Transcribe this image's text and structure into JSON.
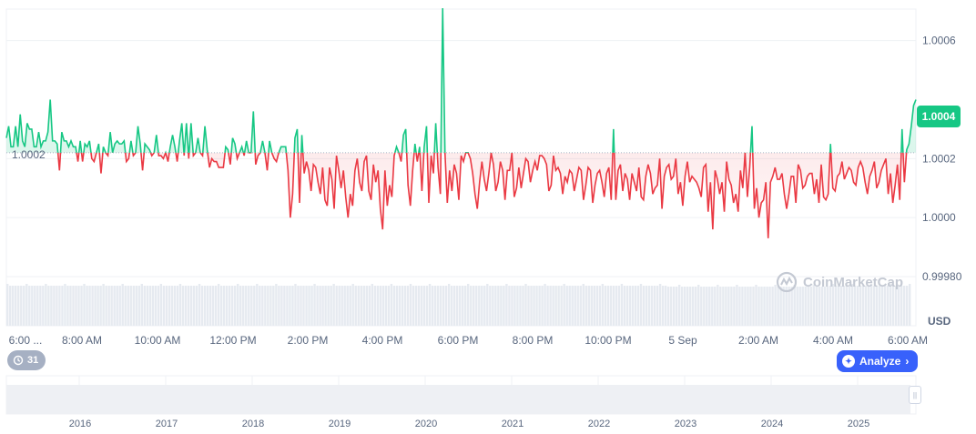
{
  "chart_data": {
    "type": "line",
    "title": "",
    "currency": "USD",
    "reference_price": 1.00022,
    "reference_label": "1.0002",
    "current_price": 1.0004,
    "current_price_label": "1.0004",
    "y_range": [
      0.9998,
      1.00071
    ],
    "y_ticks": [
      "1.0006",
      "1.0002",
      "1.0000",
      "0.99980"
    ],
    "y_tick_values": [
      1.0006,
      1.0002,
      1.0,
      0.9998
    ],
    "x_ticks": [
      "6:00 ...",
      "8:00 AM",
      "10:00 AM",
      "12:00 PM",
      "2:00 PM",
      "4:00 PM",
      "6:00 PM",
      "8:00 PM",
      "10:00 PM",
      "5 Sep",
      "2:00 AM",
      "4:00 AM",
      "6:00 AM"
    ],
    "series_prices": [
      1.00027,
      1.00031,
      1.00024,
      1.00024,
      1.00031,
      1.00024,
      1.00035,
      1.00026,
      1.00024,
      1.00032,
      1.0003,
      1.0003,
      1.00024,
      1.00024,
      1.00029,
      1.00024,
      1.00026,
      1.00026,
      1.00029,
      1.0004,
      1.00026,
      1.00026,
      1.00025,
      1.00016,
      1.00029,
      1.00026,
      1.00026,
      1.00024,
      1.00026,
      1.00024,
      1.00024,
      1.00019,
      1.00026,
      1.00019,
      1.00025,
      1.00024,
      1.00026,
      1.0002,
      1.00019,
      1.00022,
      1.00025,
      1.00015,
      1.00024,
      1.00022,
      1.00021,
      1.00029,
      1.00022,
      1.00025,
      1.00026,
      1.00025,
      1.00025,
      1.00026,
      1.00019,
      1.0002,
      1.00026,
      1.00021,
      1.00022,
      1.00031,
      1.00025,
      1.00016,
      1.00025,
      1.00024,
      1.00023,
      1.00021,
      1.00022,
      1.00028,
      1.00021,
      1.00021,
      1.0002,
      1.00022,
      1.00019,
      1.00024,
      1.00028,
      1.00024,
      1.00019,
      1.00026,
      1.00032,
      1.00021,
      1.00032,
      1.0002,
      1.00032,
      1.00021,
      1.00022,
      1.00027,
      1.00022,
      1.00021,
      1.00031,
      1.00023,
      1.00017,
      1.0002,
      1.00019,
      1.00019,
      1.00017,
      1.00017,
      1.00017,
      1.00024,
      1.00023,
      1.00018,
      1.00027,
      1.00025,
      1.0002,
      1.00022,
      1.00024,
      1.00021,
      1.00026,
      1.00022,
      1.00022,
      1.00036,
      1.00018,
      1.00021,
      1.00022,
      1.00026,
      1.00022,
      1.00016,
      1.00026,
      1.00022,
      1.0002,
      1.00019,
      1.00022,
      1.00024,
      1.00024,
      1.00024,
      1.00016,
      1.0,
      1.00008,
      1.00027,
      1.0003,
      1.00005,
      1.00028,
      1.00015,
      1.00019,
      1.00016,
      1.00009,
      1.00018,
      1.00017,
      1.00012,
      1.00008,
      1.00017,
      1.00006,
      1.00004,
      1.00017,
      1.00013,
      1.00003,
      1.00021,
      1.00016,
      1.0001,
      1.00016,
      1.00007,
      1.0,
      1.00008,
      1.00004,
      1.00016,
      1.0002,
      1.00012,
      1.00009,
      1.00019,
      1.00021,
      1.00009,
      1.00006,
      1.00018,
      1.00012,
      1.00016,
      1.00003,
      0.99996,
      1.00016,
      1.00004,
      1.00011,
      1.00007,
      1.00021,
      1.00024,
      1.00022,
      1.00019,
      1.00028,
      1.0003,
      1.00011,
      1.00004,
      1.00016,
      1.00025,
      1.00019,
      1.00024,
      1.00009,
      1.00024,
      1.00031,
      1.00005,
      1.00021,
      1.00015,
      1.00032,
      1.00017,
      1.00008,
      1.00071,
      1.00022,
      1.00005,
      1.00016,
      1.00009,
      1.00018,
      1.00015,
      1.00006,
      1.00021,
      1.00019,
      1.00022,
      1.00022,
      1.0002,
      1.00015,
      1.00008,
      1.00003,
      1.00012,
      1.00019,
      1.00013,
      1.00009,
      1.00015,
      1.00022,
      1.00018,
      1.00009,
      1.00012,
      1.00019,
      1.00016,
      1.00006,
      1.00016,
      1.00016,
      1.00022,
      1.00007,
      1.0001,
      1.00017,
      1.0001,
      1.00015,
      1.0002,
      1.00019,
      1.00012,
      1.00016,
      1.00019,
      1.00016,
      1.00021,
      1.00021,
      1.0002,
      1.00018,
      1.00009,
      1.00011,
      1.00021,
      1.00016,
      1.00017,
      1.00015,
      1.00008,
      1.00014,
      1.00012,
      1.00016,
      1.00015,
      1.00009,
      1.00013,
      1.00017,
      1.00016,
      1.00006,
      1.00011,
      1.00017,
      1.00016,
      1.00005,
      1.00011,
      1.00015,
      1.00016,
      1.00012,
      1.00007,
      1.00015,
      1.00017,
      1.00006,
      1.0003,
      1.00006,
      1.00016,
      1.00018,
      1.00009,
      1.00015,
      1.00013,
      1.00006,
      1.00015,
      1.00012,
      1.00009,
      1.00017,
      1.00007,
      1.00006,
      1.00014,
      1.00018,
      1.00015,
      1.00008,
      1.0001,
      1.00011,
      1.0002,
      1.00003,
      1.00014,
      1.00017,
      1.00018,
      1.00013,
      1.00014,
      1.0002,
      1.00008,
      1.00012,
      1.00004,
      1.00014,
      1.00019,
      1.00012,
      1.00014,
      1.00013,
      1.00012,
      1.0001,
      1.00007,
      1.00017,
      1.00018,
      1.00002,
      1.00012,
      0.99996,
      1.00016,
      1.00013,
      1.00008,
      1.00012,
      1.00002,
      1.00019,
      1.00013,
      1.00011,
      1.00005,
      1.00008,
      1.00002,
      1.00016,
      1.0001,
      1.00022,
      1.00007,
      1.00017,
      1.00031,
      1.00003,
      1.0001,
      1.0,
      1.00005,
      1.00006,
      1.00012,
      0.99993,
      1.00012,
      1.00014,
      1.00017,
      1.00013,
      1.00013,
      1.00015,
      1.00008,
      1.00003,
      1.00008,
      1.00014,
      1.00014,
      1.00005,
      1.00018,
      1.00016,
      1.0001,
      1.00011,
      1.00014,
      1.00015,
      1.00015,
      1.00008,
      1.00013,
      1.00005,
      1.00018,
      1.00007,
      1.00006,
      1.00008,
      1.00025,
      1.0001,
      1.00009,
      1.00014,
      1.00015,
      1.00019,
      1.00013,
      1.00015,
      1.00017,
      1.00016,
      1.00012,
      1.00011,
      1.00017,
      1.00019,
      1.00017,
      1.00012,
      1.00008,
      1.00014,
      1.00016,
      1.00019,
      1.0001,
      1.00012,
      1.00016,
      1.00018,
      1.0002,
      1.00008,
      1.00015,
      1.00005,
      1.00011,
      1.00018,
      1.00006,
      1.0003,
      1.00012,
      1.00023,
      1.00025,
      1.00031,
      1.00038,
      1.0004
    ],
    "navigator_years": [
      "2016",
      "2017",
      "2018",
      "2019",
      "2020",
      "2021",
      "2022",
      "2023",
      "2024",
      "2025"
    ],
    "colors": {
      "up": "#16c784",
      "down": "#ea3943",
      "grid": "#eff2f5",
      "volume": "#e6eaf0"
    }
  },
  "branding": {
    "logo_text": "CoinMarketCap",
    "logo_icon": "coinmarketcap-icon"
  },
  "ui": {
    "currency_label": "USD",
    "history_icon": "history-icon",
    "history_count": "31",
    "analyze_label": "Analyze",
    "analyze_icon": "ai-icon",
    "nav_handle_icon": "grip-icon"
  }
}
